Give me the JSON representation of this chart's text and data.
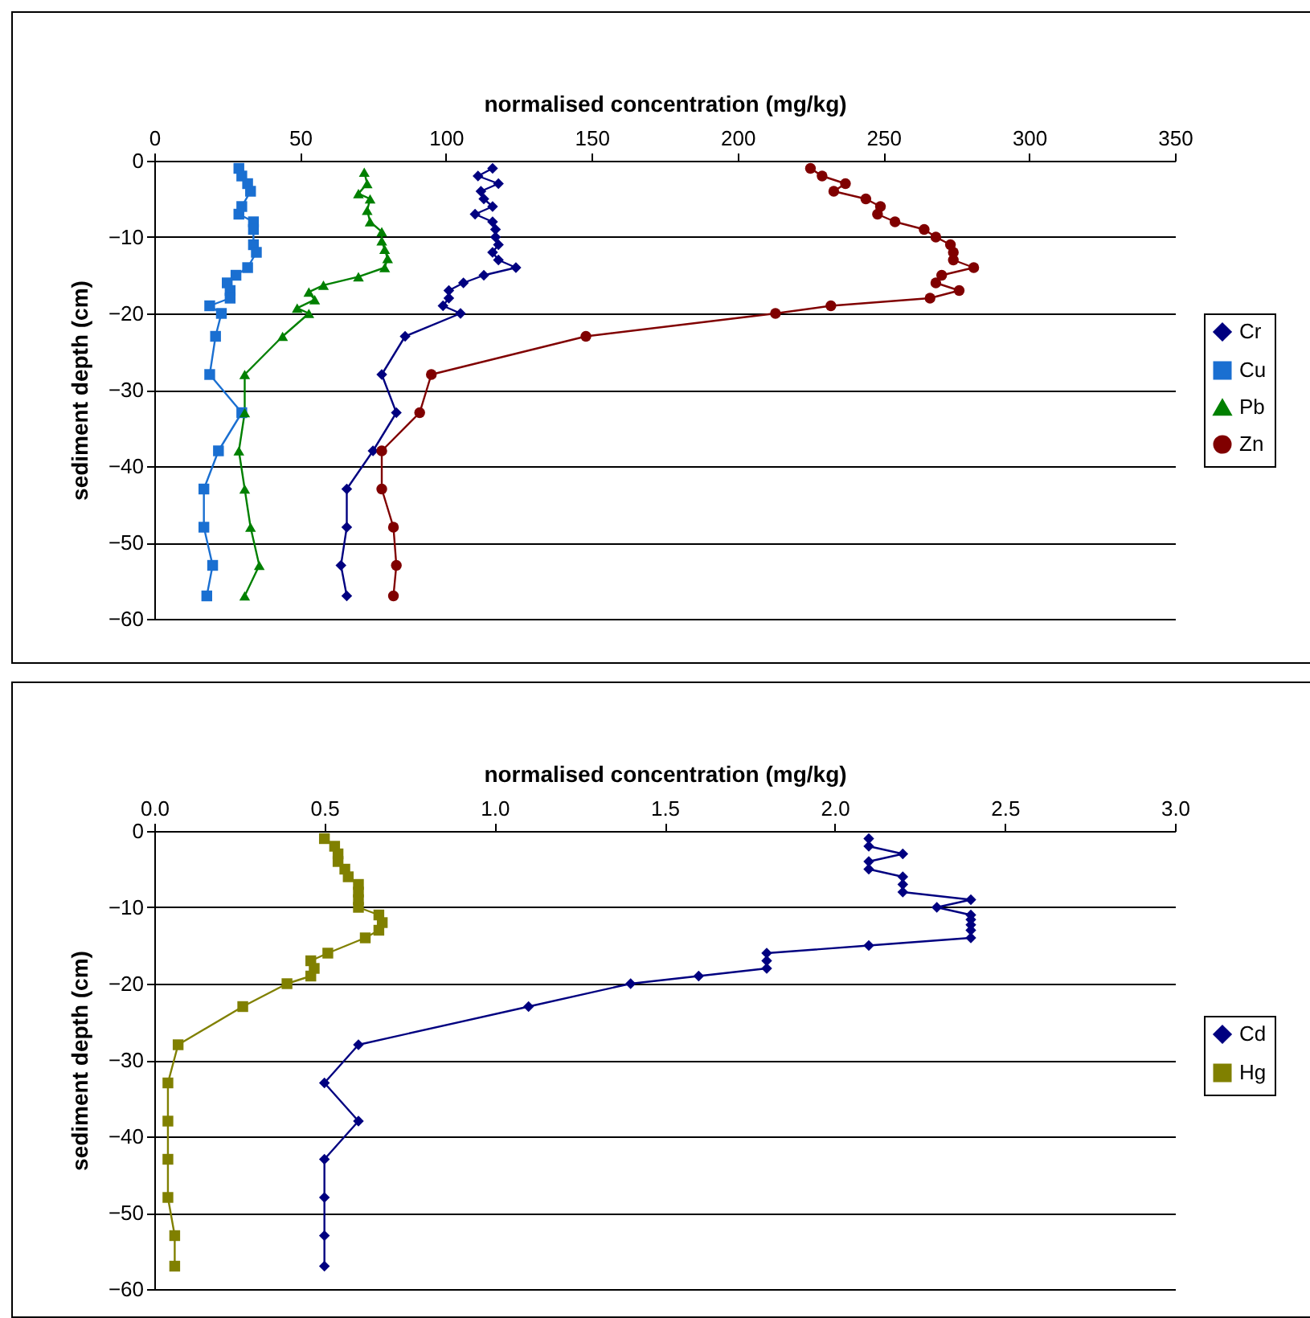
{
  "chart_data": [
    {
      "type": "line",
      "xlabel": "normalised concentration (mg/kg)",
      "ylabel": "sediment depth (cm)",
      "xlim": [
        0,
        350
      ],
      "xticks": [
        0,
        50,
        100,
        150,
        200,
        250,
        300,
        350
      ],
      "ylim": [
        -60,
        0
      ],
      "yticks": [
        -60,
        -50,
        -40,
        -30,
        -20,
        -10,
        0
      ],
      "grid": "y",
      "legend": "right",
      "series": [
        {
          "name": "Cr",
          "color": "#000080",
          "marker": "diamond",
          "x": [
            116,
            111,
            118,
            112,
            113,
            116,
            110,
            116,
            117,
            117,
            118,
            116,
            118,
            124,
            113,
            106,
            101,
            101,
            99,
            105,
            86,
            78,
            83,
            75,
            66,
            66,
            64,
            66
          ],
          "values": [
            -1,
            -2,
            -3,
            -4,
            -5,
            -6,
            -7,
            -8,
            -9,
            -10,
            -11,
            -12,
            -13,
            -14,
            -15,
            -16,
            -17,
            -18,
            -19,
            -20,
            -23,
            -28,
            -33,
            -38,
            -43,
            -48,
            -53,
            -57
          ]
        },
        {
          "name": "Cu",
          "color": "#1a6fd1",
          "marker": "square",
          "x": [
            29,
            30,
            32,
            33,
            30,
            29,
            34,
            34,
            34,
            35,
            32,
            28,
            25,
            26,
            26,
            19,
            23,
            21,
            19,
            30,
            22,
            17,
            17,
            20,
            18
          ],
          "values": [
            -1,
            -2,
            -3,
            -4,
            -6,
            -7,
            -8,
            -9,
            -11,
            -12,
            -14,
            -15,
            -16,
            -17,
            -18,
            -19,
            -20,
            -23,
            -28,
            -33,
            -38,
            -43,
            -48,
            -53,
            -57
          ]
        },
        {
          "name": "Pb",
          "color": "#008000",
          "marker": "triangle",
          "x": [
            72,
            73,
            70,
            74,
            73,
            74,
            78,
            78,
            79,
            80,
            79,
            70,
            58,
            53,
            55,
            49,
            53,
            44,
            31,
            31,
            29,
            31,
            33,
            36,
            31
          ],
          "values": [
            -1.5,
            -3,
            -4.3,
            -5,
            -6.5,
            -8,
            -9.3,
            -10.5,
            -11.6,
            -12.8,
            -14,
            -15.2,
            -16.3,
            -17.2,
            -18.2,
            -19.3,
            -20,
            -23,
            -28,
            -33,
            -38,
            -43,
            -48,
            -53,
            -57
          ]
        },
        {
          "name": "Zn",
          "color": "#800000",
          "marker": "circle",
          "x": [
            225,
            229,
            237,
            233,
            244,
            249,
            248,
            254,
            264,
            268,
            273,
            274,
            274,
            281,
            270,
            268,
            276,
            266,
            232,
            213,
            148,
            95,
            91,
            78,
            78,
            82,
            83,
            82
          ],
          "values": [
            -1,
            -2,
            -3,
            -4,
            -5,
            -6,
            -7,
            -8,
            -9,
            -10,
            -11,
            -12,
            -13,
            -14,
            -15,
            -16,
            -17,
            -18,
            -19,
            -20,
            -23,
            -28,
            -33,
            -38,
            -43,
            -48,
            -53,
            -57
          ]
        }
      ]
    },
    {
      "type": "line",
      "xlabel": "normalised concentration (mg/kg)",
      "ylabel": "sediment depth (cm)",
      "xlim": [
        0,
        3
      ],
      "xticks": [
        {
          "value": 0,
          "label": "0.0"
        },
        0.5,
        {
          "value": 1,
          "label": "1.0"
        },
        1.5,
        {
          "value": 2,
          "label": "2.0"
        },
        2.5,
        {
          "value": 3,
          "label": "3.0"
        }
      ],
      "ylim": [
        -60,
        0
      ],
      "yticks": [
        -60,
        -50,
        -40,
        -30,
        -20,
        -10,
        0
      ],
      "grid": "y",
      "legend": "right",
      "series": [
        {
          "name": "Cd",
          "color": "#000080",
          "marker": "diamond",
          "x": [
            2.1,
            2.1,
            2.2,
            2.1,
            2.1,
            2.2,
            2.2,
            2.2,
            2.4,
            2.3,
            2.4,
            2.4,
            2.4,
            2.4,
            2.4,
            2.1,
            1.8,
            1.8,
            1.8,
            1.6,
            1.4,
            1.1,
            0.6,
            0.5,
            0.6,
            0.5,
            0.5,
            0.5,
            0.5
          ],
          "values": [
            -1,
            -2,
            -3,
            -4,
            -5,
            -6,
            -7,
            -8,
            -9,
            -10,
            -11,
            -11.6,
            -12.3,
            -13,
            -14,
            -15,
            -16,
            -17,
            -18,
            -19,
            -20,
            -23,
            -28,
            -33,
            -38,
            -43,
            -48,
            -53,
            -57
          ]
        },
        {
          "name": "Hg",
          "color": "#808000",
          "marker": "square",
          "x": [
            0.5,
            0.53,
            0.54,
            0.54,
            0.56,
            0.57,
            0.6,
            0.6,
            0.6,
            0.6,
            0.66,
            0.67,
            0.66,
            0.62,
            0.51,
            0.46,
            0.47,
            0.46,
            0.39,
            0.26,
            0.07,
            0.04,
            0.04,
            0.04,
            0.04,
            0.06,
            0.06
          ],
          "values": [
            -1,
            -2,
            -3,
            -4,
            -5,
            -6,
            -7,
            -8,
            -9,
            -10,
            -11,
            -12,
            -13,
            -14,
            -16,
            -17,
            -18,
            -19,
            -20,
            -23,
            -28,
            -33,
            -38,
            -43,
            -48,
            -53,
            -57
          ]
        }
      ]
    }
  ]
}
